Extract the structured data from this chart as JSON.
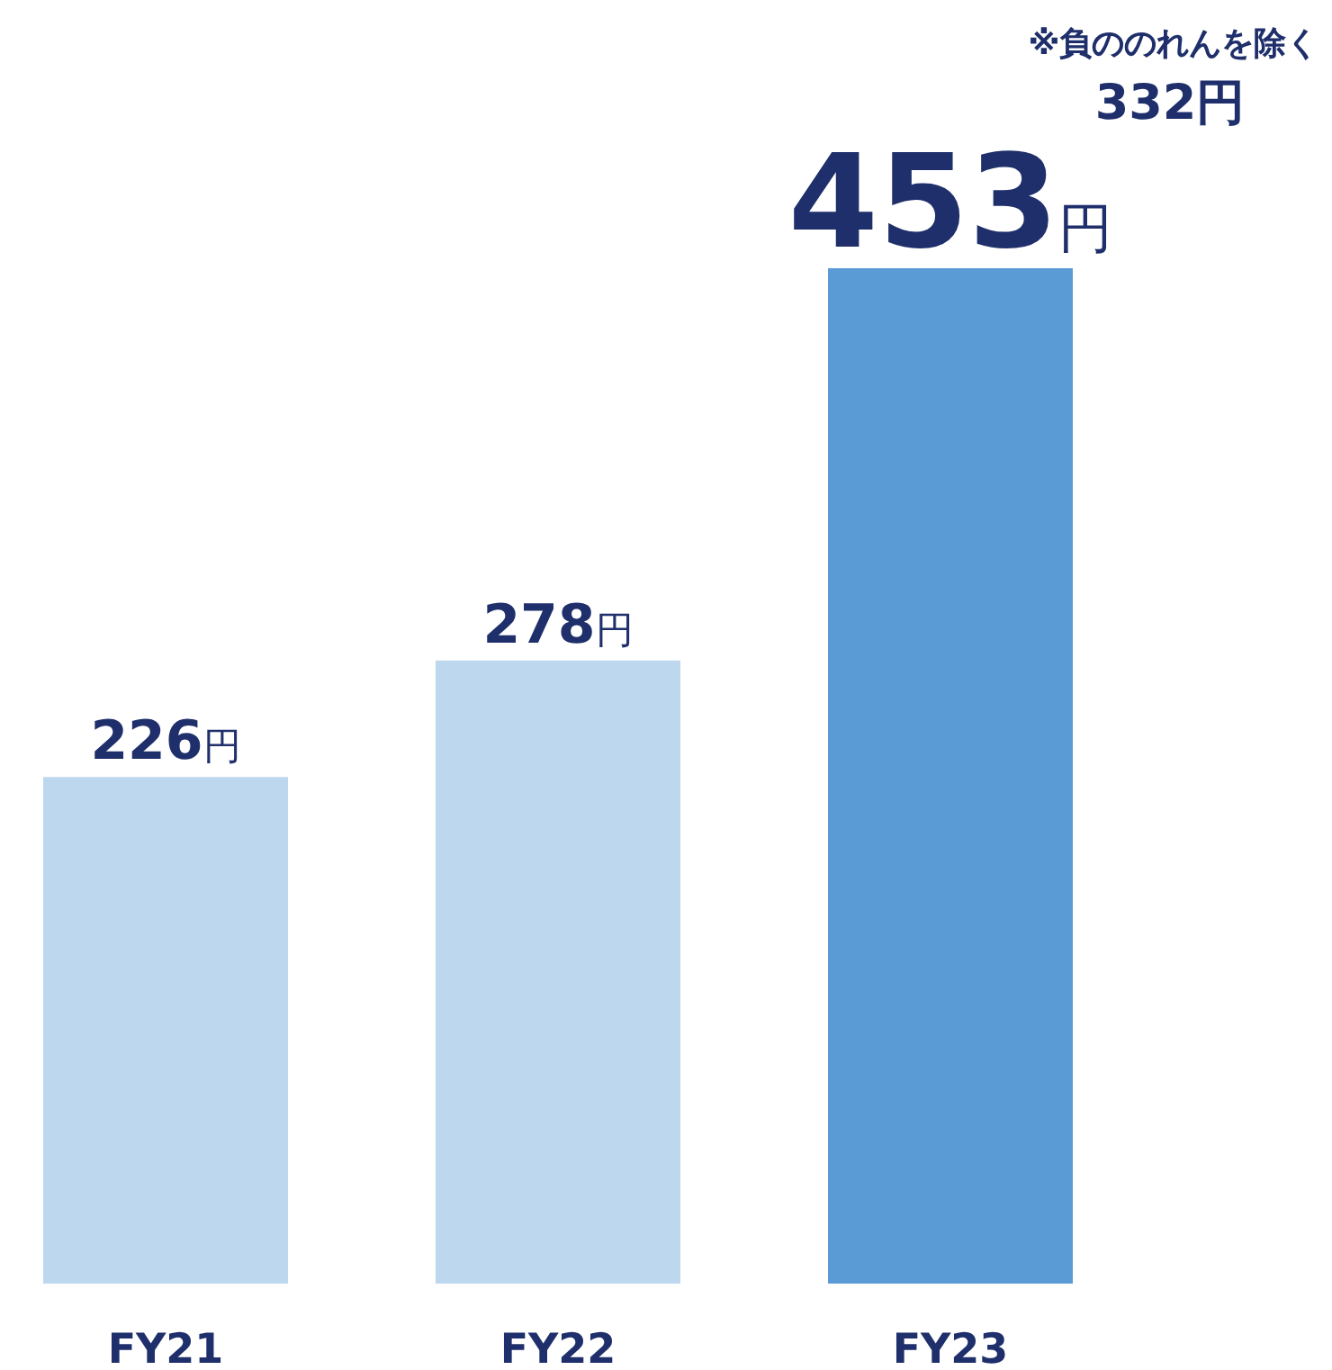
{
  "chart_data": {
    "type": "bar",
    "categories": [
      "FY21",
      "FY22",
      "FY23"
    ],
    "values": [
      226,
      278,
      453
    ],
    "colors": [
      "#bdd7ee",
      "#bdd7ee",
      "#5b9bd5"
    ],
    "value_labels": [
      "226円",
      "278円",
      "453円"
    ],
    "annotations": [
      "※負ののれんを除く",
      "332円"
    ]
  }
}
